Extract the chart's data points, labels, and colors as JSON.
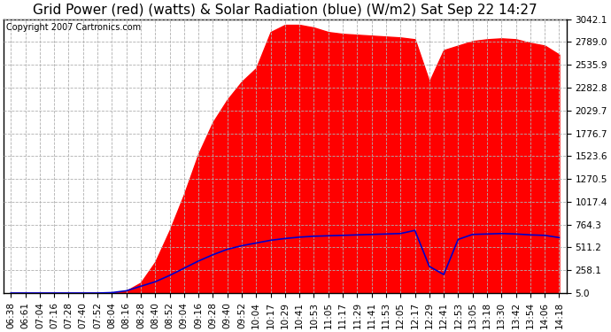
{
  "title": "Grid Power (red) (watts) & Solar Radiation (blue) (W/m2) Sat Sep 22 14:27",
  "yticks": [
    5.0,
    258.1,
    511.2,
    764.3,
    1017.4,
    1270.5,
    1523.6,
    1776.7,
    2029.7,
    2282.8,
    2535.9,
    2789.0,
    3042.1
  ],
  "ymin": 5.0,
  "ymax": 3042.1,
  "copyright": "Copyright 2007 Cartronics.com",
  "xtick_labels": [
    "06:38",
    "06:61",
    "07:04",
    "07:16",
    "07:28",
    "07:40",
    "07:52",
    "08:04",
    "08:16",
    "08:28",
    "08:40",
    "08:52",
    "09:04",
    "09:16",
    "09:28",
    "09:40",
    "09:52",
    "10:04",
    "10:17",
    "10:29",
    "10:41",
    "10:53",
    "11:05",
    "11:17",
    "11:29",
    "11:41",
    "11:53",
    "12:05",
    "12:17",
    "12:29",
    "12:41",
    "12:53",
    "13:05",
    "13:18",
    "13:30",
    "13:42",
    "13:54",
    "14:06",
    "14:18"
  ],
  "red_data": [
    5,
    5,
    5,
    5,
    5,
    5,
    5,
    5,
    30,
    120,
    350,
    700,
    1100,
    1550,
    1900,
    2150,
    2350,
    2500,
    2900,
    2980,
    2980,
    2950,
    2900,
    2880,
    2870,
    2860,
    2850,
    2840,
    2820,
    2350,
    2700,
    2750,
    2800,
    2820,
    2830,
    2820,
    2780,
    2750,
    2650
  ],
  "blue_data": [
    5,
    5,
    5,
    5,
    5,
    5,
    5,
    10,
    30,
    80,
    130,
    200,
    280,
    360,
    430,
    490,
    530,
    560,
    590,
    610,
    625,
    635,
    640,
    645,
    650,
    655,
    660,
    665,
    700,
    300,
    210,
    600,
    655,
    660,
    665,
    660,
    650,
    645,
    620
  ],
  "red_color": "#ff0000",
  "blue_color": "#0000cc",
  "bg_color": "#ffffff",
  "plot_bg_color": "#ffffff",
  "grid_color": "#b0b0b0",
  "title_fontsize": 11,
  "tick_fontsize": 7.5,
  "copyright_fontsize": 7
}
